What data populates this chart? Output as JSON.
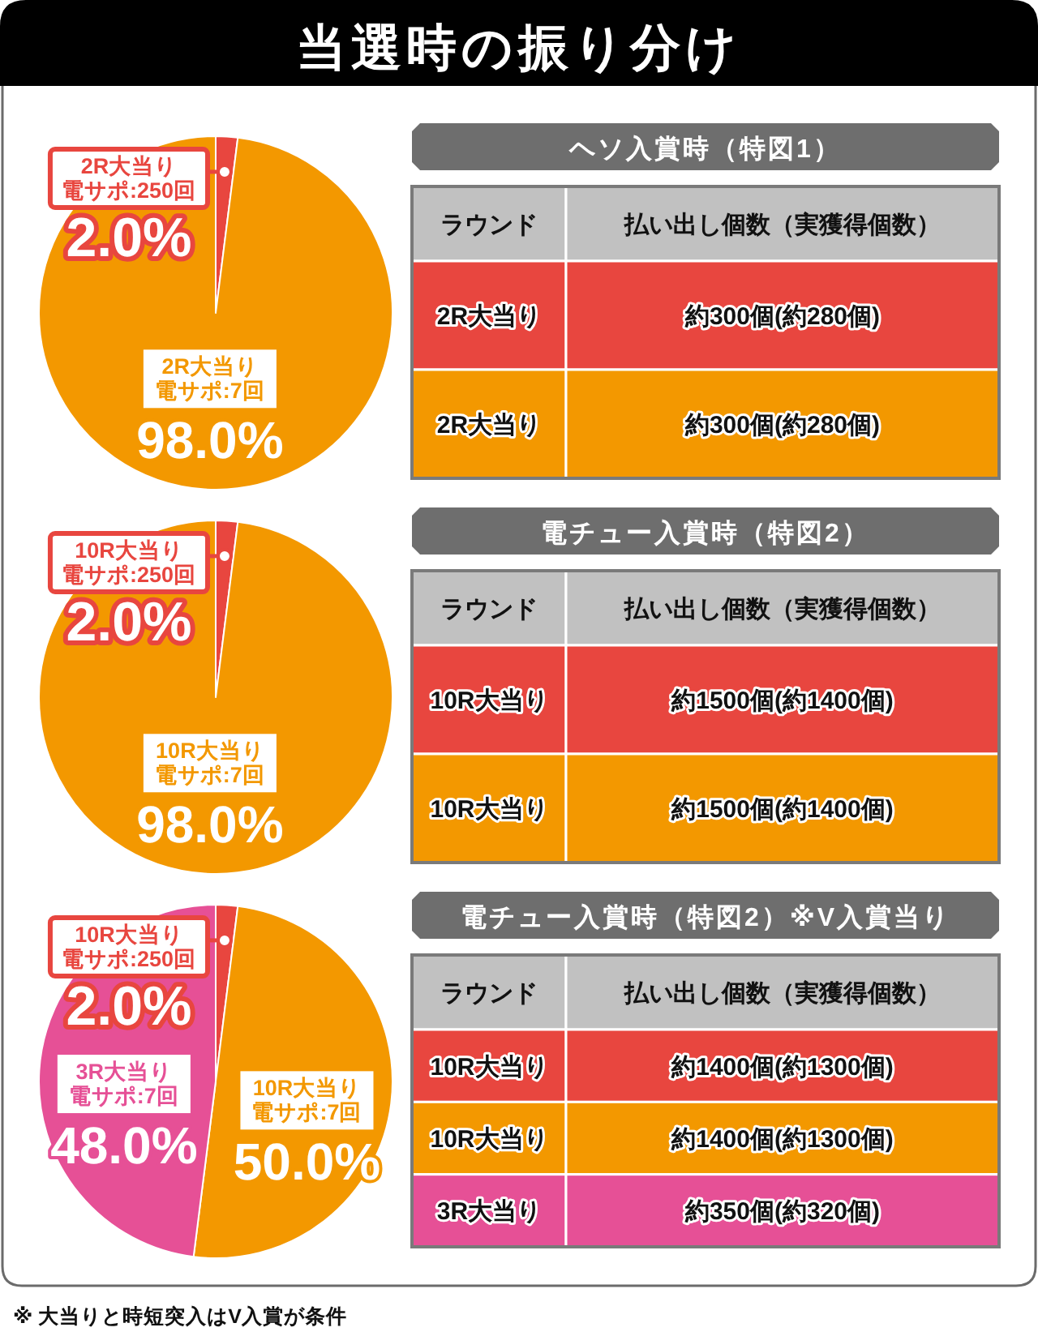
{
  "chart_data": [
    {
      "type": "other",
      "title": "当選時の振り分け",
      "annotations": [
        "※ 大当りと時短突入はV入賞が条件"
      ]
    },
    {
      "type": "pie",
      "categories": [
        "2R大当り電サポ:250回",
        "2R大当り電サポ:7回"
      ],
      "values": [
        2.0,
        98.0
      ],
      "value_labels": [
        "2.0%",
        "98.0%"
      ],
      "colors": [
        "#e8463f",
        "#f39800"
      ]
    },
    {
      "type": "other",
      "title": "ヘソ入賞時（特図1）",
      "annotations": [
        "ラウンド",
        "払い出し個数（実獲得個数）",
        "2R大当り",
        "約300個(約280個)",
        "2R大当り",
        "約300個(約280個)"
      ],
      "colors": [
        "#c1c1c1",
        "#e8463f",
        "#f39800"
      ]
    },
    {
      "type": "pie",
      "categories": [
        "10R大当り電サポ:250回",
        "10R大当り電サポ:7回"
      ],
      "values": [
        2.0,
        98.0
      ],
      "value_labels": [
        "2.0%",
        "98.0%"
      ],
      "colors": [
        "#e8463f",
        "#f39800"
      ]
    },
    {
      "type": "other",
      "title": "電チュー入賞時（特図2）",
      "annotations": [
        "ラウンド",
        "払い出し個数（実獲得個数）",
        "10R大当り",
        "約1500個(約1400個)",
        "10R大当り",
        "約1500個(約1400個)"
      ],
      "colors": [
        "#c1c1c1",
        "#e8463f",
        "#f39800"
      ]
    },
    {
      "type": "pie",
      "categories": [
        "10R大当り電サポ:250回",
        "10R大当り電サポ:7回",
        "3R大当り電サポ:7回"
      ],
      "values": [
        2.0,
        50.0,
        48.0
      ],
      "value_labels": [
        "2.0%",
        "50.0%",
        "48.0%"
      ],
      "colors": [
        "#e8463f",
        "#f39800",
        "#e65096"
      ]
    },
    {
      "type": "other",
      "title": "電チュー入賞時（特図2）※V入賞当り",
      "annotations": [
        "ラウンド",
        "払い出し個数（実獲得個数）",
        "10R大当り",
        "約1400個(約1300個)",
        "10R大当り",
        "約1400個(約1300個)",
        "3R大当り",
        "約350個(約320個)"
      ],
      "colors": [
        "#c1c1c1",
        "#e8463f",
        "#f39800",
        "#e65096"
      ]
    }
  ]
}
